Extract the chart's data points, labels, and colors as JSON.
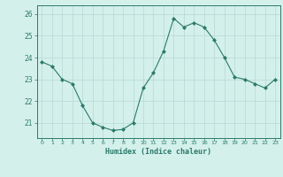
{
  "x": [
    0,
    1,
    2,
    3,
    4,
    5,
    6,
    7,
    8,
    9,
    10,
    11,
    12,
    13,
    14,
    15,
    16,
    17,
    18,
    19,
    20,
    21,
    22,
    23
  ],
  "y": [
    23.8,
    23.6,
    23.0,
    22.8,
    21.8,
    21.0,
    20.8,
    20.65,
    20.7,
    21.0,
    22.6,
    23.3,
    24.3,
    25.8,
    25.4,
    25.6,
    25.4,
    24.8,
    24.0,
    23.1,
    23.0,
    22.8,
    22.6,
    23.0
  ],
  "xlim": [
    -0.5,
    23.5
  ],
  "ylim": [
    20.3,
    26.4
  ],
  "yticks": [
    21,
    22,
    23,
    24,
    25,
    26
  ],
  "xticks": [
    0,
    1,
    2,
    3,
    4,
    5,
    6,
    7,
    8,
    9,
    10,
    11,
    12,
    13,
    14,
    15,
    16,
    17,
    18,
    19,
    20,
    21,
    22,
    23
  ],
  "xlabel": "Humidex (Indice chaleur)",
  "line_color": "#2a7a6a",
  "marker": "D",
  "marker_size": 2.0,
  "bg_color": "#d4f0eb",
  "grid_color": "#b8d8d4",
  "tick_color": "#2a7a6a",
  "label_color": "#2a7a6a",
  "spine_color": "#2a7a6a"
}
